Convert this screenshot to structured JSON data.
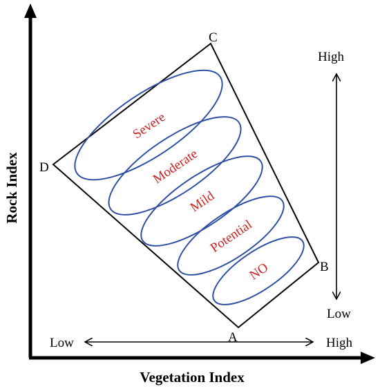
{
  "axes": {
    "x_label": "Vegetation Index",
    "y_label": "Rock Index"
  },
  "scales": {
    "horizontal": {
      "low": "Low",
      "high": "High"
    },
    "vertical": {
      "high": "High",
      "low": "Low"
    }
  },
  "vertices": {
    "a": "A",
    "b": "B",
    "c": "C",
    "d": "D"
  },
  "zones": [
    "Severe",
    "Moderate",
    "Mild",
    "Potential",
    "NO"
  ],
  "colors": {
    "ellipse_stroke": "#2e4fa3",
    "zone_text": "#cc2222",
    "lines": "#000000"
  }
}
